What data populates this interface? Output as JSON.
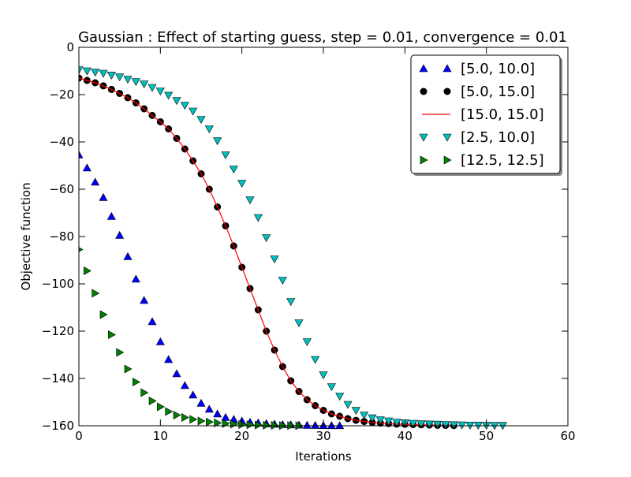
{
  "chart_data": {
    "type": "scatter",
    "title": "Gaussian : Effect of starting guess, step = 0.01, convergence = 0.01",
    "xlabel": "Iterations",
    "ylabel": "Objective function",
    "xlim": [
      0,
      60
    ],
    "ylim": [
      -160,
      0
    ],
    "xticks": [
      0,
      10,
      20,
      30,
      40,
      50,
      60
    ],
    "yticks": [
      0,
      -20,
      -40,
      -60,
      -80,
      -100,
      -120,
      -140,
      -160
    ],
    "xtick_labels": [
      "0",
      "10",
      "20",
      "30",
      "40",
      "50",
      "60"
    ],
    "ytick_labels": [
      "0",
      "−20",
      "−40",
      "−60",
      "−80",
      "−100",
      "−120",
      "−140",
      "−160"
    ],
    "grid": false,
    "legend_position": "top-right",
    "series": [
      {
        "name": "[5.0, 10.0]",
        "marker": "triangle-up",
        "color": "#0000ff",
        "x": [
          0,
          1,
          2,
          3,
          4,
          5,
          6,
          7,
          8,
          9,
          10,
          11,
          12,
          13,
          14,
          15,
          16,
          17,
          18,
          19,
          20,
          21,
          22,
          23,
          24,
          25,
          26,
          27,
          28,
          29,
          30,
          31,
          32
        ],
        "y": [
          -45.5,
          -51,
          -57,
          -63.5,
          -71.5,
          -79.5,
          -88.5,
          -98,
          -107,
          -116,
          -124.5,
          -132,
          -138,
          -143,
          -147,
          -150.5,
          -153,
          -155,
          -156.5,
          -157.3,
          -158,
          -158.5,
          -158.8,
          -159.1,
          -159.3,
          -159.5,
          -159.6,
          -159.7,
          -159.8,
          -159.85,
          -159.9,
          -159.93,
          -159.95
        ]
      },
      {
        "name": "[5.0, 15.0]",
        "marker": "circle",
        "color": "#000000",
        "x": [
          0,
          1,
          2,
          3,
          4,
          5,
          6,
          7,
          8,
          9,
          10,
          11,
          12,
          13,
          14,
          15,
          16,
          17,
          18,
          19,
          20,
          21,
          22,
          23,
          24,
          25,
          26,
          27,
          28,
          29,
          30,
          31,
          32,
          33,
          34,
          35,
          36,
          37,
          38,
          39,
          40,
          41,
          42,
          43,
          44,
          45,
          46
        ],
        "y": [
          -13,
          -14,
          -15,
          -16.3,
          -17.8,
          -19.5,
          -21.3,
          -23.5,
          -26,
          -28.8,
          -31.5,
          -34.5,
          -38.5,
          -43,
          -48,
          -53.5,
          -60,
          -67.5,
          -75.5,
          -84,
          -93,
          -102,
          -111,
          -120,
          -128,
          -135,
          -141,
          -145.5,
          -149,
          -151.5,
          -153.5,
          -155,
          -156,
          -157,
          -157.7,
          -158.2,
          -158.6,
          -158.9,
          -159.1,
          -159.3,
          -159.4,
          -159.5,
          -159.6,
          -159.7,
          -159.8,
          -159.85,
          -159.9
        ]
      },
      {
        "name": "[15.0, 15.0]",
        "marker": "line",
        "color": "#ff0000",
        "x": [
          0,
          1,
          2,
          3,
          4,
          5,
          6,
          7,
          8,
          9,
          10,
          11,
          12,
          13,
          14,
          15,
          16,
          17,
          18,
          19,
          20,
          21,
          22,
          23,
          24,
          25,
          26,
          27,
          28,
          29,
          30,
          31,
          32,
          33,
          34,
          35,
          36,
          37,
          38,
          39,
          40,
          41,
          42,
          43,
          44,
          45,
          46
        ],
        "y": [
          -13,
          -14,
          -15,
          -16.3,
          -17.8,
          -19.5,
          -21.3,
          -23.5,
          -26,
          -28.8,
          -31.5,
          -34.5,
          -38.5,
          -43,
          -48,
          -53.5,
          -60,
          -67.5,
          -75.5,
          -84,
          -93,
          -102,
          -111,
          -120,
          -128,
          -135,
          -141,
          -145.5,
          -149,
          -151.5,
          -153.5,
          -155,
          -156,
          -157,
          -157.7,
          -158.2,
          -158.6,
          -158.9,
          -159.1,
          -159.3,
          -159.4,
          -159.5,
          -159.6,
          -159.7,
          -159.8,
          -159.85,
          -159.9
        ]
      },
      {
        "name": "[2.5, 10.0]",
        "marker": "triangle-down",
        "color": "#00bfbf",
        "x": [
          0,
          1,
          2,
          3,
          4,
          5,
          6,
          7,
          8,
          9,
          10,
          11,
          12,
          13,
          14,
          15,
          16,
          17,
          18,
          19,
          20,
          21,
          22,
          23,
          24,
          25,
          26,
          27,
          28,
          29,
          30,
          31,
          32,
          33,
          34,
          35,
          36,
          37,
          38,
          39,
          40,
          41,
          42,
          43,
          44,
          45,
          46,
          47,
          48,
          49,
          50,
          51,
          52
        ],
        "y": [
          -9.5,
          -10,
          -10.5,
          -11,
          -11.8,
          -12.5,
          -13.5,
          -14.5,
          -15.5,
          -17,
          -18.5,
          -20.3,
          -22.5,
          -24.5,
          -27,
          -30.5,
          -34.5,
          -39.5,
          -45.5,
          -51.5,
          -57.5,
          -64.5,
          -72,
          -80.5,
          -89.5,
          -98.5,
          -107.5,
          -116.5,
          -124.5,
          -132,
          -138.5,
          -143.5,
          -147.5,
          -151,
          -153.5,
          -155.5,
          -156.7,
          -157.5,
          -158,
          -158.5,
          -158.8,
          -159,
          -159.2,
          -159.3,
          -159.4,
          -159.5,
          -159.6,
          -159.7,
          -159.75,
          -159.8,
          -159.85,
          -159.9,
          -159.9
        ]
      },
      {
        "name": "[12.5, 12.5]",
        "marker": "triangle-right",
        "color": "#008000",
        "x": [
          0,
          1,
          2,
          3,
          4,
          5,
          6,
          7,
          8,
          9,
          10,
          11,
          12,
          13,
          14,
          15,
          16,
          17,
          18,
          19,
          20,
          21,
          22,
          23,
          24,
          25,
          26,
          27
        ],
        "y": [
          -85.5,
          -94.5,
          -104,
          -113,
          -121.5,
          -129,
          -136,
          -141.5,
          -146,
          -149.5,
          -152,
          -154,
          -155.5,
          -156.5,
          -157.3,
          -158,
          -158.4,
          -158.8,
          -159.1,
          -159.3,
          -159.5,
          -159.6,
          -159.7,
          -159.8,
          -159.85,
          -159.9,
          -159.93,
          -159.95
        ]
      }
    ]
  }
}
